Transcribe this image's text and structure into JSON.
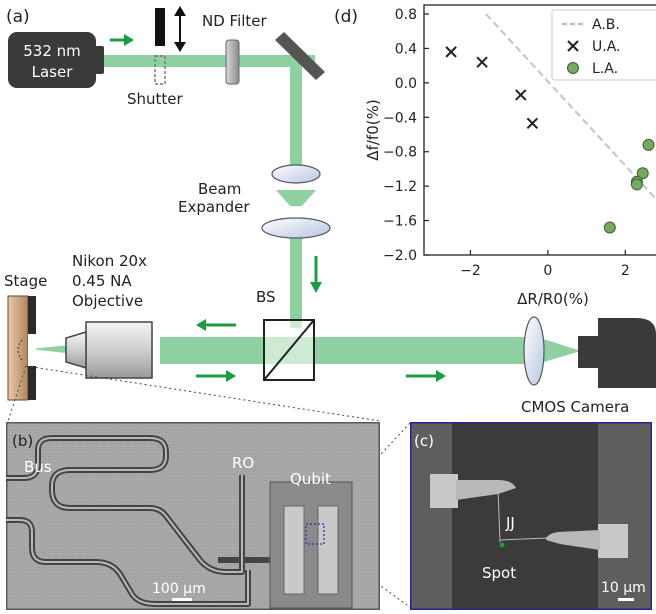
{
  "panels": {
    "a": "(a)",
    "b": "(b)",
    "c": "(c)",
    "d": "(d)"
  },
  "setup": {
    "laser_line1": "532 nm",
    "laser_line2": "Laser",
    "shutter": "Shutter",
    "nd_filter": "ND Filter",
    "beam_line1": "Beam",
    "beam_line2": "Expander",
    "objective_line1": "Nikon 20x",
    "objective_line2": "0.45 NA",
    "objective_line3": "Objective",
    "stage": "Stage",
    "bs": "BS",
    "camera": "CMOS Camera"
  },
  "micrograph_b": {
    "bus": "Bus",
    "ro": "RO",
    "qubit": "Qubit",
    "scale": "100 μm"
  },
  "micrograph_c": {
    "jj": "JJ",
    "spot": "Spot",
    "scale": "10 μm"
  },
  "colors": {
    "beam": "#8fd0a0",
    "arrow": "#1e9a45",
    "marker_la": "#78a864"
  },
  "chart_data": {
    "type": "scatter",
    "title": "",
    "ylabel": "Δf/f0(%)",
    "xlabel": "ΔR/R0(%)",
    "ylim": [
      -2.0,
      0.8
    ],
    "xlim": [
      -3.2,
      3.0
    ],
    "yticks": [
      "0.8",
      "0.4",
      "0.0",
      "−0.4",
      "−0.8",
      "−1.2",
      "−1.6",
      "−2.0"
    ],
    "xticks": [
      "−2",
      "0",
      "2"
    ],
    "legend_position": "top-right",
    "series": [
      {
        "name": "A.B.",
        "type": "dashed-line",
        "x": [
          -1.6,
          3.0
        ],
        "y": [
          0.8,
          -1.45
        ]
      },
      {
        "name": "U.A.",
        "marker": "x",
        "x": [
          -2.5,
          -1.7,
          -0.7,
          -0.4
        ],
        "y": [
          0.36,
          0.24,
          -0.14,
          -0.47
        ]
      },
      {
        "name": "L.A.",
        "marker": "circle",
        "x": [
          2.6,
          2.45,
          2.3,
          2.3,
          1.6
        ],
        "y": [
          -0.72,
          -1.05,
          -1.15,
          -1.18,
          -1.68
        ]
      }
    ]
  }
}
